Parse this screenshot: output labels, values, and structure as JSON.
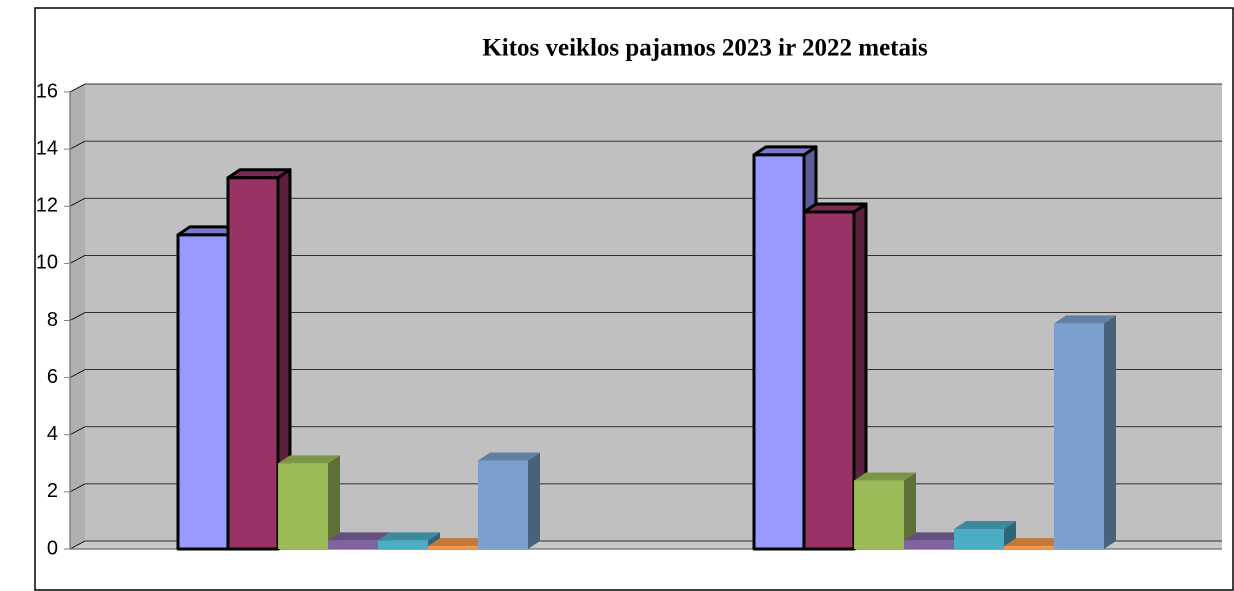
{
  "chart_data": {
    "type": "bar3d",
    "title": "Kitos veiklos pajamos 2023 ir 2022 metais",
    "categories": [
      null,
      null
    ],
    "series": [
      {
        "color": "#9999ff",
        "edgecolor": "#000000",
        "values": [
          11,
          13.8
        ]
      },
      {
        "color": "#993366",
        "edgecolor": "#000000",
        "values": [
          13,
          11.8
        ]
      },
      {
        "color": "#9bbb59",
        "values": [
          3,
          2.4
        ]
      },
      {
        "color": "#8064a2",
        "values": [
          0.3,
          0.3
        ]
      },
      {
        "color": "#4bacc6",
        "values": [
          0.3,
          0.7
        ]
      },
      {
        "color": "#f79646",
        "values": [
          0.1,
          0.1
        ]
      },
      {
        "color": "#7ba0cd",
        "values": [
          3.1,
          7.9
        ]
      }
    ],
    "ylim": [
      0,
      16
    ],
    "yticks": [
      0,
      2,
      4,
      6,
      8,
      10,
      12,
      14,
      16
    ],
    "grid": true
  }
}
